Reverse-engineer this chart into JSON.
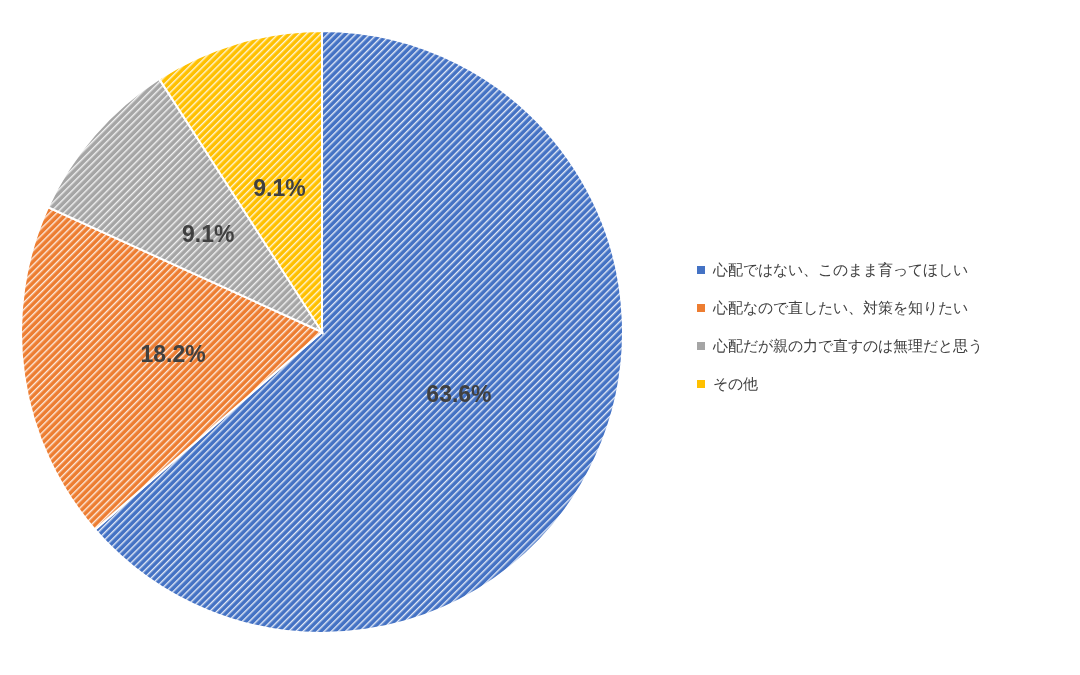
{
  "chart_data": {
    "type": "pie",
    "categories": [
      "心配ではない、このまま育ってほしい",
      "心配なので直したい、対策を知りたい",
      "心配だが親の力で直すのは無理だと思う",
      "その他"
    ],
    "values": [
      63.6,
      18.2,
      9.1,
      9.1
    ],
    "colors": [
      "#4472c4",
      "#ed7d31",
      "#a5a5a5",
      "#ffc000"
    ],
    "value_labels": [
      "63.6%",
      "18.2%",
      "9.1%",
      "9.1%"
    ],
    "legend": "right"
  }
}
